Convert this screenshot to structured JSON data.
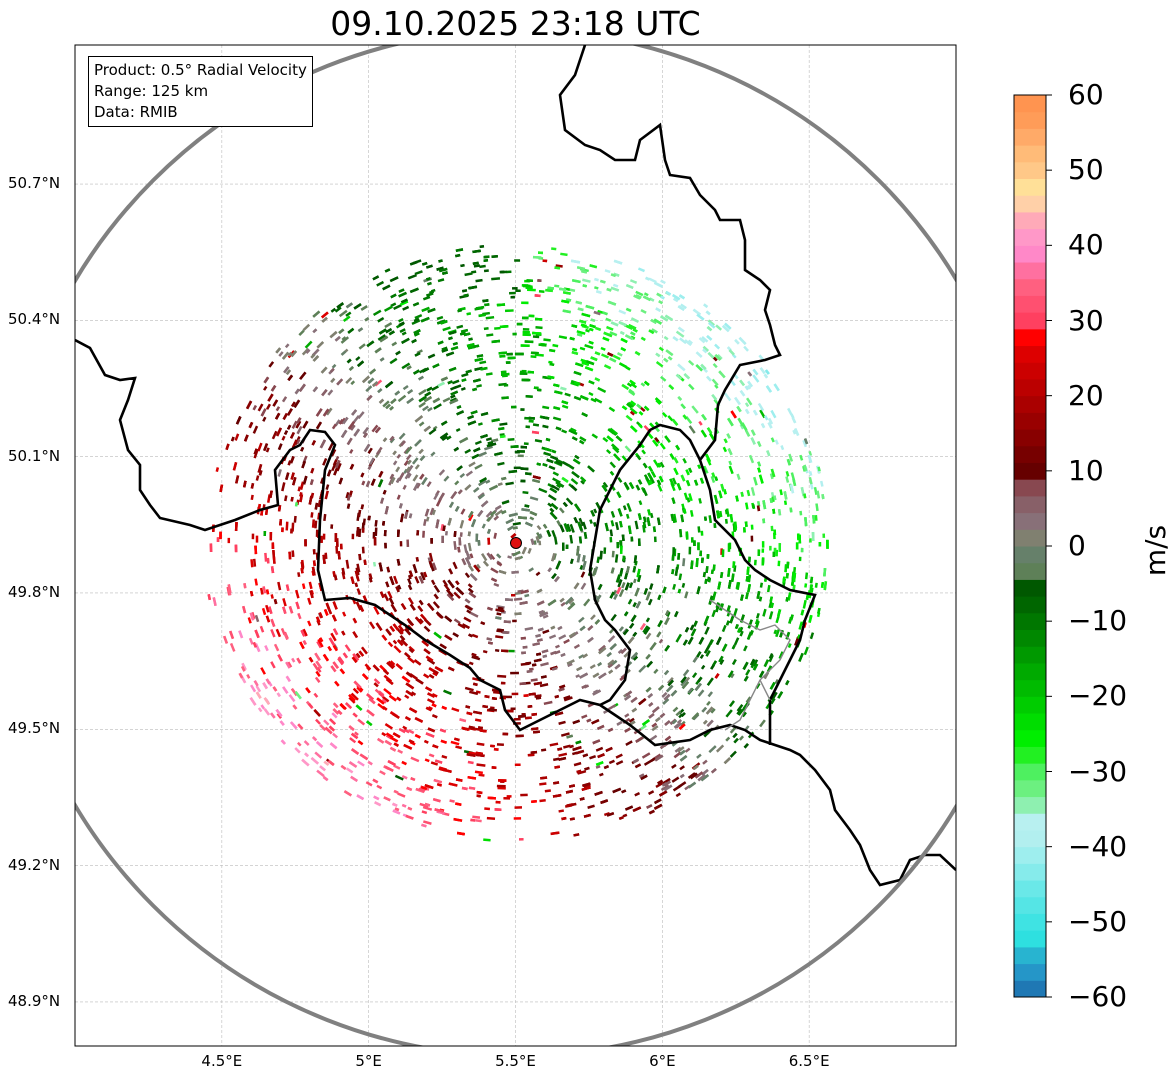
{
  "title": "09.10.2025 23:18 UTC",
  "info_box": {
    "product": "Product: 0.5° Radial Velocity",
    "range": "Range: 125 km",
    "data": "Data: RMIB"
  },
  "map": {
    "lon_range": [
      4.0,
      7.0
    ],
    "lat_range": [
      48.803,
      51.006
    ],
    "radar_site": {
      "lon": 5.505,
      "lat": 49.914
    },
    "range_ring_km": 125,
    "lon_ticks": [
      {
        "value": 4.5,
        "label": "4.5°E"
      },
      {
        "value": 5.0,
        "label": "5°E"
      },
      {
        "value": 5.5,
        "label": "5.5°E"
      },
      {
        "value": 6.0,
        "label": "6°E"
      },
      {
        "value": 6.5,
        "label": "6.5°E"
      }
    ],
    "lat_ticks": [
      {
        "value": 50.7,
        "label": "50.7°N"
      },
      {
        "value": 50.4,
        "label": "50.4°N"
      },
      {
        "value": 50.1,
        "label": "50.1°N"
      },
      {
        "value": 49.8,
        "label": "49.8°N"
      },
      {
        "value": 49.5,
        "label": "49.5°N"
      },
      {
        "value": 49.2,
        "label": "49.2°N"
      },
      {
        "value": 48.9,
        "label": "48.9°N"
      }
    ]
  },
  "colorbar": {
    "unit": "m/s",
    "range": [
      -60,
      60
    ],
    "ticks": [
      {
        "v": 60,
        "l": "60"
      },
      {
        "v": 50,
        "l": "50"
      },
      {
        "v": 40,
        "l": "40"
      },
      {
        "v": 30,
        "l": "30"
      },
      {
        "v": 20,
        "l": "20"
      },
      {
        "v": 10,
        "l": "10"
      },
      {
        "v": 0,
        "l": "0"
      },
      {
        "v": -10,
        "l": "−10"
      },
      {
        "v": -20,
        "l": "−20"
      },
      {
        "v": -30,
        "l": "−30"
      },
      {
        "v": -40,
        "l": "−40"
      },
      {
        "v": -50,
        "l": "−50"
      },
      {
        "v": -60,
        "l": "−60"
      }
    ],
    "colors_bottom_to_top": [
      "#1f78b4",
      "#2596c8",
      "#28b4d0",
      "#2ee0e0",
      "#3fe3e3",
      "#55e5e5",
      "#6ae8e8",
      "#86ebeb",
      "#9eeeee",
      "#b2efef",
      "#b8f0f0",
      "#8ef0b0",
      "#6cf080",
      "#4ef060",
      "#22f022",
      "#00ee00",
      "#00dd00",
      "#00cc00",
      "#00bb00",
      "#00aa00",
      "#009900",
      "#008800",
      "#007700",
      "#006600",
      "#005800",
      "#5e8058",
      "#66806a",
      "#808070",
      "#887078",
      "#886068",
      "#884850",
      "#660000",
      "#770000",
      "#880000",
      "#990000",
      "#aa0000",
      "#bb0000",
      "#cc0000",
      "#dd0000",
      "#ff0000",
      "#ff4060",
      "#ff5070",
      "#ff6080",
      "#ff70a0",
      "#ff88c8",
      "#ff98c8",
      "#ffaab8",
      "#ffd0a8",
      "#ffe098",
      "#ffc888",
      "#ffbb78",
      "#ffaa68",
      "#ff9c58",
      "#ff9450"
    ]
  },
  "colors": {
    "ring": "#808080",
    "border": "#000000",
    "radar_marker": "#dd1111"
  }
}
